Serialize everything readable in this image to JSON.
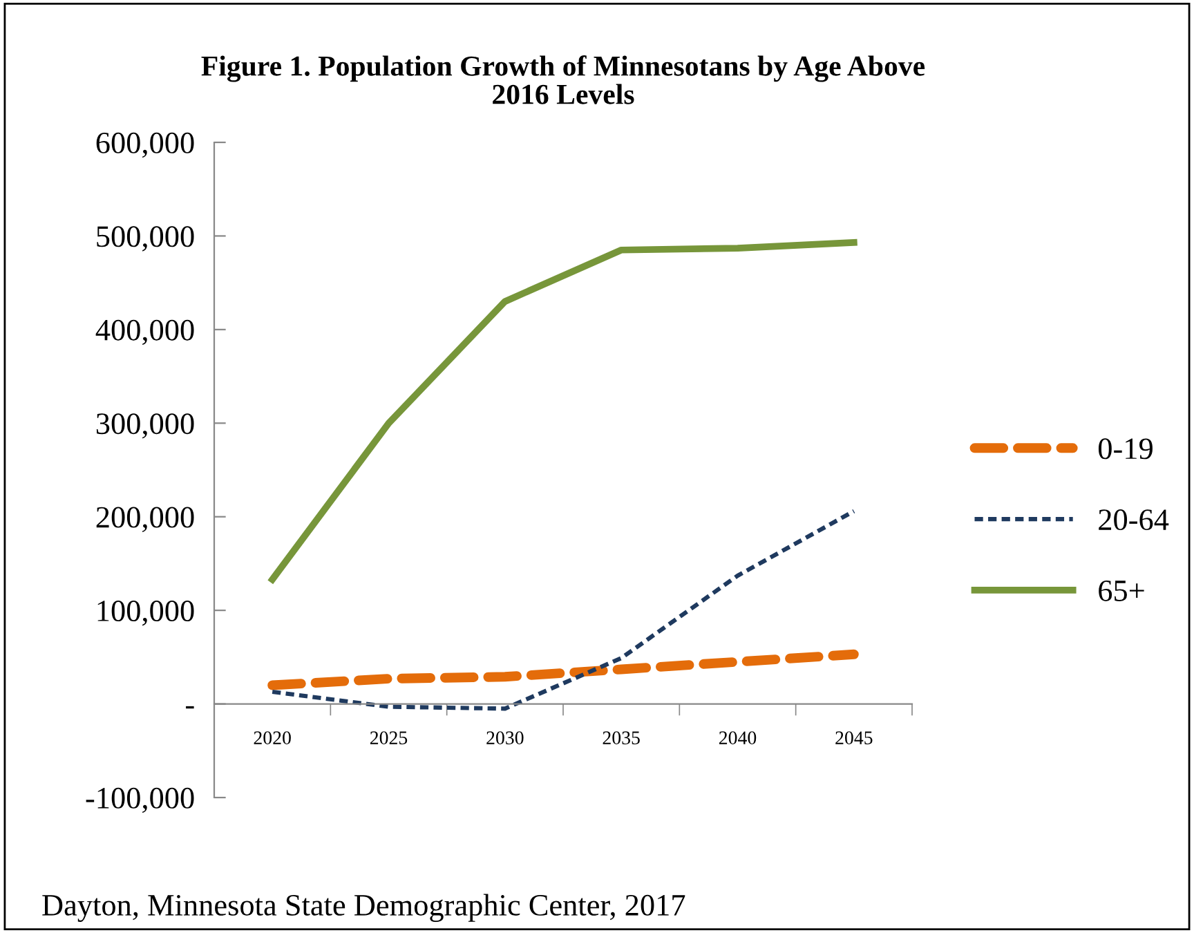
{
  "chart_data": {
    "type": "line",
    "title": "Figure 1. Population Growth of Minnesotans by Age Above\n2016 Levels",
    "categories": [
      "2020",
      "2025",
      "2030",
      "2035",
      "2040",
      "2045"
    ],
    "series": [
      {
        "name": "0-19",
        "color": "#e46c0a",
        "line_style": "dashed",
        "values": [
          20000,
          27000,
          29000,
          37000,
          45000,
          53000
        ]
      },
      {
        "name": "20-64",
        "color": "#1f3a5f",
        "line_style": "dotted",
        "values": [
          13000,
          -3000,
          -5000,
          49000,
          137000,
          206000
        ]
      },
      {
        "name": "65+",
        "color": "#77963a",
        "line_style": "solid",
        "values": [
          133000,
          300000,
          430000,
          485000,
          487000,
          493000
        ]
      }
    ],
    "ylim": [
      -100000,
      600000
    ],
    "yticks": [
      {
        "value": -100000,
        "label": "-100,000"
      },
      {
        "value": 0,
        "label": "-"
      },
      {
        "value": 100000,
        "label": "100,000"
      },
      {
        "value": 200000,
        "label": "200,000"
      },
      {
        "value": 300000,
        "label": "300,000"
      },
      {
        "value": 400000,
        "label": "400,000"
      },
      {
        "value": 500000,
        "label": "500,000"
      },
      {
        "value": 600000,
        "label": "600,000"
      }
    ],
    "grid": false,
    "legend": "right",
    "marker": "none",
    "annotations": [
      "Dayton, Minnesota State Demographic Center, 2017"
    ]
  }
}
